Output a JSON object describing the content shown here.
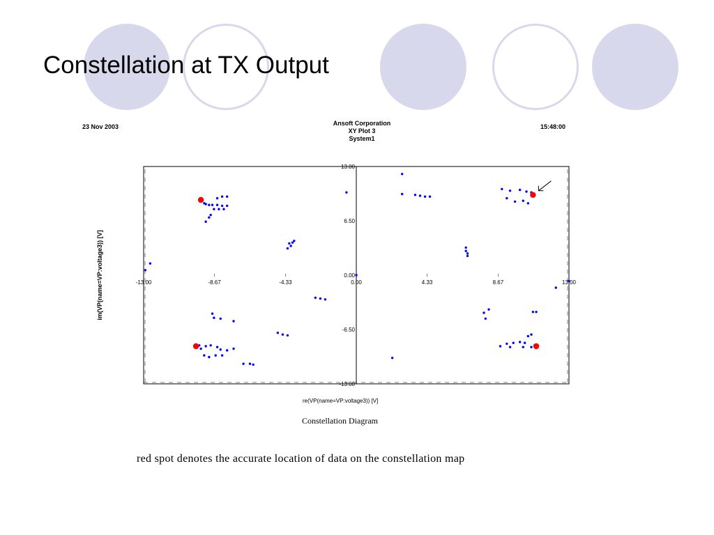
{
  "slide": {
    "title": "Constellation at TX Output",
    "note": "red spot denotes the accurate location of data on the constellation map"
  },
  "header": {
    "date": "23 Nov 2003",
    "company": "Ansoft Corporation",
    "plot_name": "XY Plot 3",
    "system": "System1",
    "time": "15:48:00"
  },
  "colors": {
    "deco": "#d8d8ec",
    "points": "#0000ff",
    "reference": "#ff0000"
  },
  "chart_data": {
    "type": "scatter",
    "title": "Constellation Diagram",
    "xlabel": "re(VP(name=VP:voltage3)) [V]",
    "ylabel": "im(VP(name=VP:voltage3)) [V]",
    "xlim": [
      -13.0,
      13.0
    ],
    "ylim": [
      -13.0,
      13.0
    ],
    "x_ticks": [
      "-13.00",
      "-8.67",
      "-4.33",
      "0.00",
      "4.33",
      "8.67",
      "13.00"
    ],
    "y_ticks": [
      "13.00",
      "6.50",
      "0.00",
      "-6.50",
      "-13.00"
    ],
    "grid": false,
    "series": [
      {
        "marker": "small dots",
        "points": [
          [
            -12.9,
            0.6
          ],
          [
            -12.6,
            1.4
          ],
          [
            -9.3,
            8.6
          ],
          [
            -9.2,
            8.5
          ],
          [
            -9.0,
            8.4
          ],
          [
            -8.8,
            8.4
          ],
          [
            -8.5,
            8.4
          ],
          [
            -8.2,
            8.3
          ],
          [
            -7.9,
            8.3
          ],
          [
            -8.7,
            7.9
          ],
          [
            -8.4,
            7.9
          ],
          [
            -8.1,
            7.9
          ],
          [
            -8.5,
            9.2
          ],
          [
            -8.2,
            9.4
          ],
          [
            -7.9,
            9.4
          ],
          [
            -8.9,
            7.2
          ],
          [
            -9.0,
            6.9
          ],
          [
            -9.2,
            6.4
          ],
          [
            -4.2,
            3.2
          ],
          [
            -4.0,
            3.5
          ],
          [
            -4.1,
            3.8
          ],
          [
            -3.9,
            3.9
          ],
          [
            -3.8,
            4.1
          ],
          [
            -0.6,
            9.9
          ],
          [
            -2.5,
            -2.7
          ],
          [
            -2.2,
            -2.8
          ],
          [
            -1.9,
            -2.9
          ],
          [
            -8.8,
            -4.6
          ],
          [
            -8.7,
            -5.1
          ],
          [
            -8.3,
            -5.2
          ],
          [
            -7.5,
            -5.5
          ],
          [
            -9.6,
            -8.4
          ],
          [
            -9.5,
            -8.8
          ],
          [
            -9.2,
            -8.5
          ],
          [
            -8.9,
            -8.4
          ],
          [
            -8.5,
            -8.6
          ],
          [
            -8.3,
            -8.9
          ],
          [
            -9.3,
            -9.6
          ],
          [
            -9.0,
            -9.8
          ],
          [
            -8.6,
            -9.6
          ],
          [
            -8.2,
            -9.6
          ],
          [
            -7.9,
            -9.0
          ],
          [
            -7.5,
            -8.8
          ],
          [
            -6.9,
            -10.6
          ],
          [
            -6.5,
            -10.6
          ],
          [
            -6.3,
            -10.7
          ],
          [
            -4.8,
            -6.9
          ],
          [
            -4.5,
            -7.1
          ],
          [
            -4.2,
            -7.2
          ],
          [
            0.0,
            0.0
          ],
          [
            2.8,
            12.1
          ],
          [
            2.8,
            9.7
          ],
          [
            3.6,
            9.6
          ],
          [
            3.9,
            9.5
          ],
          [
            4.2,
            9.4
          ],
          [
            4.5,
            9.4
          ],
          [
            2.2,
            -9.9
          ],
          [
            6.7,
            3.3
          ],
          [
            6.7,
            2.9
          ],
          [
            6.8,
            2.6
          ],
          [
            6.8,
            2.3
          ],
          [
            7.8,
            -4.5
          ],
          [
            8.1,
            -4.1
          ],
          [
            7.9,
            -5.2
          ],
          [
            8.9,
            10.3
          ],
          [
            9.4,
            10.1
          ],
          [
            10.0,
            10.2
          ],
          [
            10.4,
            10.0
          ],
          [
            10.7,
            9.9
          ],
          [
            9.2,
            9.2
          ],
          [
            9.7,
            8.8
          ],
          [
            10.2,
            8.9
          ],
          [
            10.5,
            8.6
          ],
          [
            12.2,
            -1.5
          ],
          [
            13.0,
            -0.7
          ],
          [
            10.8,
            -4.4
          ],
          [
            11.0,
            -4.4
          ],
          [
            9.2,
            -8.2
          ],
          [
            9.6,
            -8.1
          ],
          [
            10.0,
            -8.0
          ],
          [
            10.3,
            -8.1
          ],
          [
            10.5,
            -7.3
          ],
          [
            10.7,
            -7.1
          ],
          [
            10.2,
            -8.6
          ],
          [
            10.7,
            -8.6
          ],
          [
            10.9,
            -8.4
          ],
          [
            9.4,
            -8.6
          ],
          [
            8.8,
            -8.5
          ]
        ]
      },
      {
        "marker": "red spot (reference)",
        "points": [
          [
            -9.5,
            9.0
          ],
          [
            -9.8,
            -8.5
          ],
          [
            10.8,
            9.6
          ],
          [
            11.0,
            -8.5
          ]
        ]
      }
    ],
    "annotation": "arrow pointing to upper-right red spot"
  }
}
